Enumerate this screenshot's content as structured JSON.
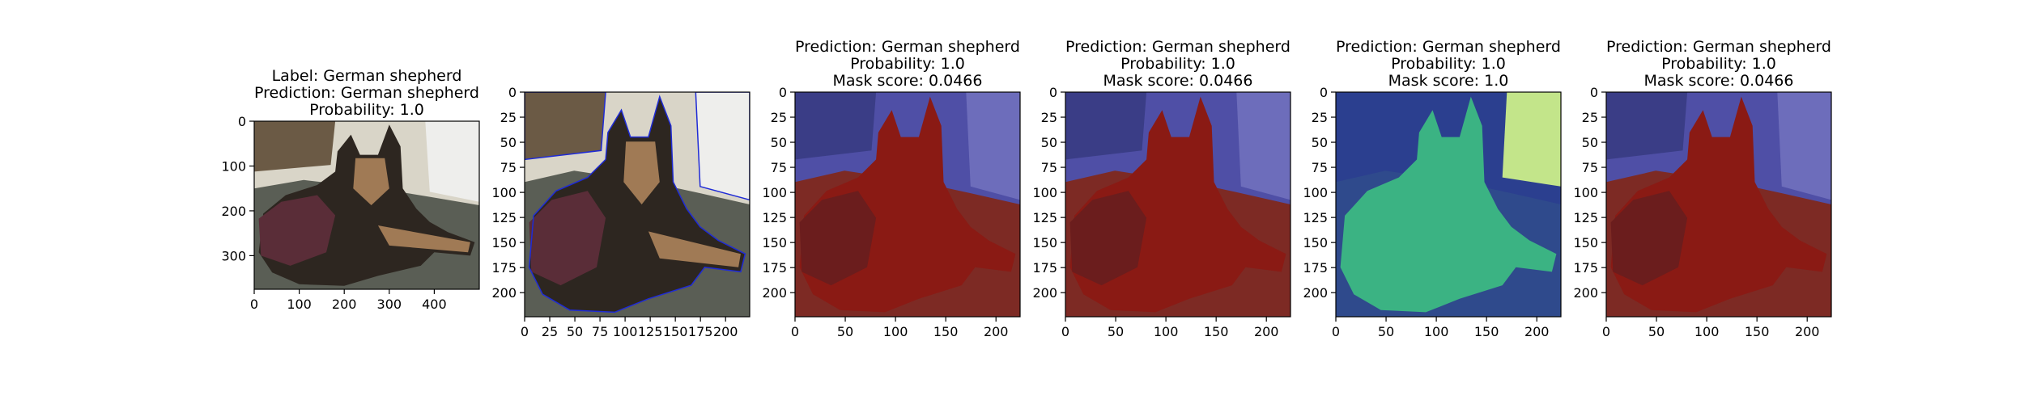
{
  "chart_data": [
    {
      "type": "image",
      "title_lines": [
        "Label: German shepherd",
        "Prediction: German shepherd",
        "Probability: 1.0"
      ],
      "xlim": [
        0,
        500
      ],
      "ylim": [
        375,
        0
      ],
      "xticks": [
        0,
        100,
        200,
        300,
        400
      ],
      "yticks": [
        0,
        100,
        200,
        300
      ],
      "overlay": "none"
    },
    {
      "type": "image",
      "title_lines": [],
      "xlim": [
        0,
        224
      ],
      "ylim": [
        224,
        0
      ],
      "xticks": [
        0,
        25,
        50,
        75,
        100,
        125,
        150,
        175,
        200
      ],
      "yticks": [
        0,
        25,
        50,
        75,
        100,
        125,
        150,
        175,
        200
      ],
      "overlay": "contour"
    },
    {
      "type": "image",
      "title_lines": [
        "Prediction: German shepherd",
        "Probability: 1.0",
        "Mask score: 0.0466"
      ],
      "xlim": [
        0,
        224
      ],
      "ylim": [
        224,
        0
      ],
      "xticks": [
        0,
        50,
        100,
        150,
        200
      ],
      "yticks": [
        0,
        25,
        50,
        75,
        100,
        125,
        150,
        175,
        200
      ],
      "overlay": "mask-red-blue"
    },
    {
      "type": "image",
      "title_lines": [
        "Prediction: German shepherd",
        "Probability: 1.0",
        "Mask score: 0.0466"
      ],
      "xlim": [
        0,
        224
      ],
      "ylim": [
        224,
        0
      ],
      "xticks": [
        0,
        50,
        100,
        150,
        200
      ],
      "yticks": [
        0,
        25,
        50,
        75,
        100,
        125,
        150,
        175,
        200
      ],
      "overlay": "mask-red-blue"
    },
    {
      "type": "image",
      "title_lines": [
        "Prediction: German shepherd",
        "Probability: 1.0",
        "Mask score: 1.0"
      ],
      "xlim": [
        0,
        224
      ],
      "ylim": [
        224,
        0
      ],
      "xticks": [
        0,
        50,
        100,
        150,
        200
      ],
      "yticks": [
        0,
        25,
        50,
        75,
        100,
        125,
        150,
        175,
        200
      ],
      "overlay": "mask-green"
    },
    {
      "type": "image",
      "title_lines": [
        "Prediction: German shepherd",
        "Probability: 1.0",
        "Mask score: 0.0466"
      ],
      "xlim": [
        0,
        224
      ],
      "ylim": [
        224,
        0
      ],
      "xticks": [
        0,
        50,
        100,
        150,
        200
      ],
      "yticks": [
        0,
        25,
        50,
        75,
        100,
        125,
        150,
        175,
        200
      ],
      "overlay": "mask-red-blue"
    }
  ],
  "colors": {
    "floor": "#5a5e55",
    "wall": "#d9d5c8",
    "dog_dark": "#2d2620",
    "dog_tan": "#a07a55",
    "blanket": "#5a2d38",
    "contour": "#1f2bd6",
    "mask_red": "#8a1a14",
    "mask_red_floor": "#7d2a24",
    "mask_blue": "#4f4fa6",
    "mask_green": "#3bb383",
    "mask_lime": "#c3e58a",
    "mask_navy": "#2b3f8f"
  }
}
